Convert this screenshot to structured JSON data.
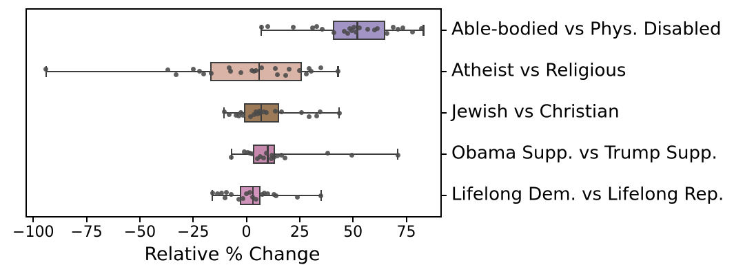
{
  "chart_data": {
    "type": "boxplot",
    "orientation": "horizontal",
    "title": "",
    "xlabel": "Relative % Change",
    "ylabel": "",
    "xlim": [
      -103,
      91
    ],
    "xticks": [
      -100,
      -75,
      -50,
      -25,
      0,
      25,
      50,
      75
    ],
    "xtick_labels": [
      "−100",
      "−75",
      "−50",
      "−25",
      "0",
      "25",
      "50",
      "75"
    ],
    "grid": false,
    "category_labels_position": "right",
    "edge_color": "#3d3d3d",
    "point_color": "#4a4a4a",
    "spine_color": "#000000",
    "rows": [
      {
        "label": "Able-bodied vs Phys. Disabled",
        "box_color": "#a294c4",
        "whisker_low": 7,
        "q1": 40.5,
        "median": 52,
        "q3": 65,
        "whisker_high": 83,
        "points": [
          [
            7,
            -5
          ],
          [
            10,
            -6
          ],
          [
            22,
            -5
          ],
          [
            31,
            -4
          ],
          [
            33,
            -6
          ],
          [
            35.5,
            -2
          ],
          [
            41,
            3
          ],
          [
            46,
            1
          ],
          [
            47.5,
            4
          ],
          [
            48.5,
            -3
          ],
          [
            49.5,
            0
          ],
          [
            50.5,
            -5
          ],
          [
            51.5,
            2
          ],
          [
            53,
            -4
          ],
          [
            57,
            -2
          ],
          [
            60,
            -1
          ],
          [
            61.5,
            -3
          ],
          [
            66,
            4
          ],
          [
            69,
            -5
          ],
          [
            71,
            -2
          ],
          [
            73.5,
            -4
          ],
          [
            78,
            2
          ],
          [
            82,
            -3
          ]
        ]
      },
      {
        "label": "Atheist vs Religious",
        "box_color": "#d9b4a7",
        "whisker_low": -94,
        "q1": -17,
        "median": 6,
        "q3": 26,
        "whisker_high": 43,
        "points": [
          [
            -94,
            -4
          ],
          [
            -37,
            -3
          ],
          [
            -33,
            4
          ],
          [
            -25,
            -4
          ],
          [
            -22,
            -1
          ],
          [
            -20,
            3
          ],
          [
            -16.5,
            2
          ],
          [
            -8,
            -6
          ],
          [
            -7.5,
            -1
          ],
          [
            -2.5,
            1
          ],
          [
            2.5,
            -2
          ],
          [
            3.5,
            -1
          ],
          [
            4.5,
            -2
          ],
          [
            7,
            -6
          ],
          [
            13.5,
            -5
          ],
          [
            14.5,
            4
          ],
          [
            18.5,
            5
          ],
          [
            20,
            -4
          ],
          [
            25,
            -2
          ],
          [
            28,
            3
          ],
          [
            29.5,
            -5
          ],
          [
            30.5,
            -1
          ],
          [
            35,
            -6
          ],
          [
            43,
            -1
          ]
        ]
      },
      {
        "label": "Jewish vs Christian",
        "box_color": "#9c7a57",
        "whisker_low": -10.5,
        "q1": -1,
        "median": 7,
        "q3": 15.5,
        "whisker_high": 43.5,
        "points": [
          [
            -10.5,
            -2
          ],
          [
            -8,
            2
          ],
          [
            -5,
            3
          ],
          [
            -3.5,
            4
          ],
          [
            -2.5,
            -1
          ],
          [
            -1.5,
            3
          ],
          [
            2,
            5
          ],
          [
            3.5,
            2
          ],
          [
            4.5,
            -2
          ],
          [
            5,
            1
          ],
          [
            6,
            -3
          ],
          [
            6.5,
            0
          ],
          [
            8,
            -2
          ],
          [
            9.5,
            -1
          ],
          [
            13.5,
            -3
          ],
          [
            16.5,
            -2
          ],
          [
            26,
            -1
          ],
          [
            29.5,
            5
          ],
          [
            33,
            4
          ],
          [
            34.5,
            -2
          ],
          [
            43.5,
            0
          ]
        ]
      },
      {
        "label": "Obama Supp. vs Trump Supp.",
        "box_color": "#c688ad",
        "whisker_low": -7,
        "q1": 3,
        "median": 10,
        "q3": 13.5,
        "whisker_high": 71,
        "points": [
          [
            -7,
            4
          ],
          [
            -1,
            -4
          ],
          [
            0.5,
            -3
          ],
          [
            1.5,
            -2
          ],
          [
            2.5,
            -1
          ],
          [
            5,
            6
          ],
          [
            6.5,
            3
          ],
          [
            8,
            5
          ],
          [
            9.5,
            -2
          ],
          [
            11.5,
            6
          ],
          [
            12,
            1
          ],
          [
            13,
            4
          ],
          [
            14.5,
            2
          ],
          [
            16.5,
            1
          ],
          [
            18,
            5
          ],
          [
            38,
            -2
          ],
          [
            49.5,
            1
          ],
          [
            71,
            1
          ]
        ]
      },
      {
        "label": "Lifelong Dem. vs Lifelong Rep.",
        "box_color": "#d093bb",
        "whisker_low": -16,
        "q1": -3,
        "median": 3,
        "q3": 6.5,
        "whisker_high": 35,
        "points": [
          [
            -16,
            -4
          ],
          [
            -13.5,
            -3
          ],
          [
            -11.5,
            -4
          ],
          [
            -10,
            3
          ],
          [
            -9.5,
            -5
          ],
          [
            -7,
            -2
          ],
          [
            -3.5,
            5
          ],
          [
            -1.5,
            4
          ],
          [
            0,
            -3
          ],
          [
            1.5,
            -5
          ],
          [
            3,
            2
          ],
          [
            4.5,
            5
          ],
          [
            7.5,
            -2
          ],
          [
            8.5,
            -4
          ],
          [
            10,
            -3
          ],
          [
            13,
            -2
          ],
          [
            14,
            0
          ],
          [
            24,
            2
          ],
          [
            35,
            0
          ]
        ]
      }
    ]
  }
}
